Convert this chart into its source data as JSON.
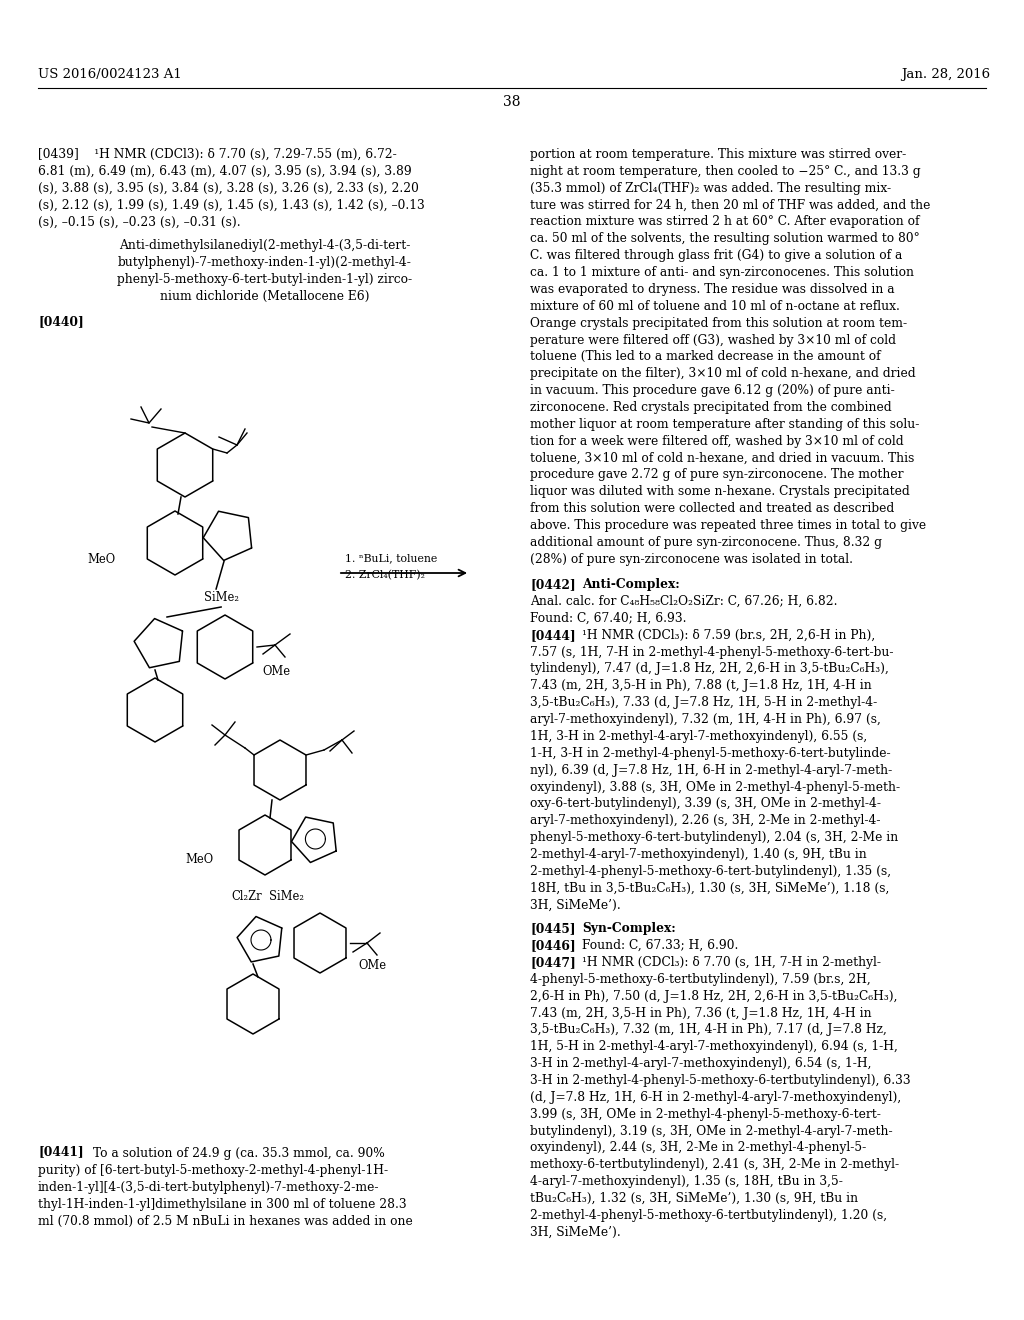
{
  "background_color": "#ffffff",
  "header_left": "US 2016/0024123 A1",
  "header_right": "Jan. 28, 2016",
  "page_number": "38",
  "paragraph_0439": "[0439]    ¹H NMR (CDCl3): δ 7.70 (s), 7.29-7.55 (m), 6.72-6.81 (m), 6.49 (m), 6.43 (m), 4.07 (s), 3.95 (s), 3.94 (s), 3.89 (s), 3.88 (s), 3.95 (s), 3.84 (s), 3.28 (s), 3.26 (s), 2.33 (s), 2.20 (s), 2.12 (s), 1.99 (s), 1.49 (s), 1.45 (s), 1.43 (s), 1.42 (s), –0.13 (s), –0.15 (s), –0.23 (s), –0.31 (s).",
  "compound_name_lines": [
    "Anti-dimethylsilanediyl(2-methyl-4-(3,5-di-tert-",
    "butylphenyl)-7-methoxy-inden-1-yl)(2-methyl-4-",
    "phenyl-5-methoxy-6-tert-butyl-inden-1-yl) zirco-",
    "nium dichloride (Metallocene E6)"
  ],
  "label_0440": "[0440]",
  "reaction_line1": "1. ⁿBuLi, toluene",
  "reaction_line2": "2. ZrCl₄(THF)₂",
  "label_0441": "[0441]",
  "paragraph_0441_text": "To a solution of 24.9 g (ca. 35.3 mmol, ca. 90% purity) of [6-tert-butyl-5-methoxy-2-methyl-4-phenyl-1H-inden-1-yl][4-(3,5-di-tert-butylphenyl)-7-methoxy-2-methyl-1H-inden-1-yl]dimethylsilane in 300 ml of toluene 28.3 ml (70.8 mmol) of 2.5 M nBuLi in hexanes was added in one",
  "right_col_para1": "portion at room temperature. This mixture was stirred overnight at room temperature, then cooled to −25° C., and 13.3 g (35.3 mmol) of ZrCl₄(THF)₂ was added. The resulting mixture was stirred for 24 h, then 20 ml of THF was added, and the reaction mixture was stirred 2 h at 60° C. After evaporation of ca. 50 ml of the solvents, the resulting solution warmed to 80° C. was filtered through glass frit (G4) to give a solution of a ca. 1 to 1 mixture of anti- and syn-zirconocenes. This solution was evaporated to dryness. The residue was dissolved in a mixture of 60 ml of toluene and 10 ml of n-octane at reflux. Orange crystals precipitated from this solution at room temperature were filtered off (G3), washed by 3×10 ml of cold toluene (This led to a marked decrease in the amount of precipitate on the filter), 3×10 ml of cold n-hexane, and dried in vacuum. This procedure gave 6.12 g (20%) of pure anti-zirconocene. Red crystals precipitated from the combined mother liquor at room temperature after standing of this solution for a week were filtered off, washed by 3×10 ml of cold toluene, 3×10 ml of cold n-hexane, and dried in vacuum. This procedure gave 2.72 g of pure syn-zirconocene. The mother liquor was diluted with some n-hexane. Crystals precipitated from this solution were collected and treated as described above. This procedure was repeated three times in total to give additional amount of pure syn-zirconocene. Thus, 8.32 g (28%) of pure syn-zirconocene was isolated in total.",
  "label_0442": "[0442]",
  "text_0442": "Anti-Complex:",
  "text_0443": "Anal. calc. for C₄₈H₅₈Cl₂O₂SiZr: C, 67.26; H, 6.82. Found: C, 67.40; H, 6.93.",
  "label_0444": "[0444]",
  "text_0444": "¹H NMR (CDCl₃): δ 7.59 (br.s, 2H, 2,6-H in Ph), 7.57 (s, 1H, 7-H in 2-methyl-4-phenyl-5-methoxy-6-tert-bu-tylindenyl), 7.47 (d, J=1.8 Hz, 2H, 2,6-H in 3,5-tBu₂C₆H₃), 7.43 (m, 2H, 3,5-H in Ph), 7.88 (t, J=1.8 Hz, 1H, 4-H in 3,5-tBu₂C₆H₃), 7.33 (d, J=7.8 Hz, 1H, 5-H in 2-methyl-4-aryl-7-methoxyindenyl), 7.32 (m, 1H, 4-H in Ph), 6.97 (s, 1H, 3-H in 2-methyl-4-aryl-7-methoxyindenyl), 6.55 (s, 1-H, 3-H in 2-methyl-4-phenyl-5-methoxy-6-tert-butylindeny l), 6.39 (d, J=7.8 Hz, 1H, 6-H in 2-methyl-4-aryl-7-meth-oxyindenyl), 3.88 (s, 3H, OMe in 2-methyl-4-phenyl-5-meth-oxy-6-tert-butylindenyl), 3.39 (s, 3H, OMe in 2-methyl-4-aryl-7-methoxyindenyl), 2.26 (s, 3H, 2-Me in 2-methyl-4-phenyl-5-methoxy-6-tert-butylindenyl), 2.04 (s, 3H, 2-Me in 2-methyl-4-aryl-7-methoxyindenyl), 1.40 (s, 9H, tBu in 2-methyl-4-phenyl-5-methoxy-6-tert-butylindenyl), 1.35 (s, 18H, tBu in 3,5-tBu₂C₆H₃), 1.30 (s, 3H, SiMeMe’), 1.18 (s, 3H, SiMeMe’).",
  "label_0445": "[0445]",
  "text_0445": "Syn-Complex:",
  "label_0446": "[0446]",
  "text_0446": "Found: C, 67.33; H, 6.90.",
  "label_0447": "[0447]",
  "text_0447": "¹H NMR (CDCl₃): δ 7.70 (s, 1H, 7-H in 2-methyl-4-phenyl-5-methoxy-6-tertbutylindenyl), 7.59 (br.s, 2H, 2,6-H in Ph), 7.50 (d, J=1.8 Hz, 2H, 2,6-H in 3,5-tBu₂C₆H₃), 7.43 (m, 2H, 3,5-H in Ph), 7.36 (t, J=1.8 Hz, 1H, 4-H in 3,5-tBu₂C₆H₃), 7.32 (m, 1H, 4-H in Ph), 7.17 (d, J=7.8 Hz, 1H, 5-H in 2-methyl-4-aryl-7-methoxyindenyl), 6.94 (s, 1-H, 3-H in 2-methyl-4-aryl-7-methoxyindenyl), 6.54 (s, 1-H, 3-H in 2-methyl-4-phenyl-5-methoxy-6-tertbutylindenyl), 6.33 (d, J=7.8 Hz, 1H, 6-H in 2-methyl-4-aryl-7-methoxyindenyl), 3.99 (s, 3H, OMe in 2-methyl-4-phenyl-5-methoxy-6-tertbutylindenyl), 3.19 (s, 3H, OMe in 2-methyl-4-aryl-7-methoxyindenyl), 2.44 (s, 3H, 2-Me in 2-methyl-4-phenyl-5-methoxy-6-tertbutylindenyl), 2.41 (s, 3H, 2-Me in 2-methyl-4-aryl-7-methoxyindenyl), 1.35 (s, 18H, tBu in 3,5-tBu₂C₆H₃), 1.32 (s, 3H, SiMeMe’), 1.30 (s, 9H, tBu in 2-methyl-4-phenyl-5-methoxy-6-tertbutylindenyl), 1.20 (s, 3H, SiMeMe’).",
  "struct1_label_MeO": "MeO",
  "struct1_label_SiMe2": "SiMe₂",
  "struct1_label_OMe": "OMe",
  "struct2_label_MeO": "MeO",
  "struct2_label_Cl2Zr": "Cl₂Zr",
  "struct2_label_SiMe2": "SiMe₂",
  "struct2_label_OMe": "OMe"
}
